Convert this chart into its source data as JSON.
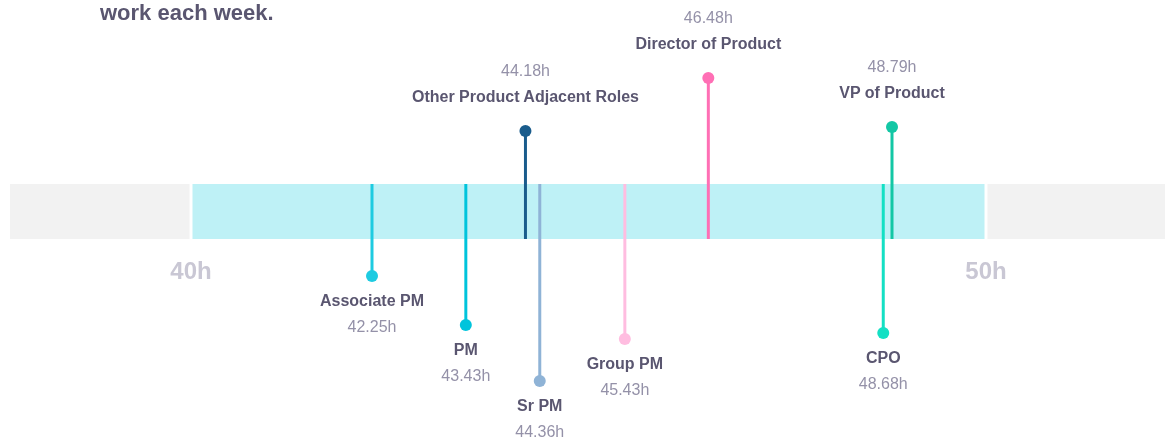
{
  "chart_data": {
    "type": "other",
    "title": "work each week.",
    "categories": [
      "Associate PM",
      "PM",
      "Other Product Adjacent Roles",
      "Sr PM",
      "Group PM",
      "Director of Product",
      "CPO",
      "VP of Product"
    ],
    "values": [
      42.25,
      43.43,
      44.18,
      44.36,
      45.43,
      46.48,
      48.68,
      48.79
    ],
    "value_labels": [
      "42.25h",
      "43.43h",
      "44.18h",
      "44.36h",
      "45.43h",
      "46.48h",
      "48.68h",
      "48.79h"
    ],
    "colors": [
      "#1ecbe1",
      "#00c4dc",
      "#1a5c8c",
      "#8fb3d6",
      "#ffbde0",
      "#ff6fb5",
      "#14e0c4",
      "#13c7a5"
    ],
    "annotations": [
      "40h",
      "50h"
    ]
  }
}
